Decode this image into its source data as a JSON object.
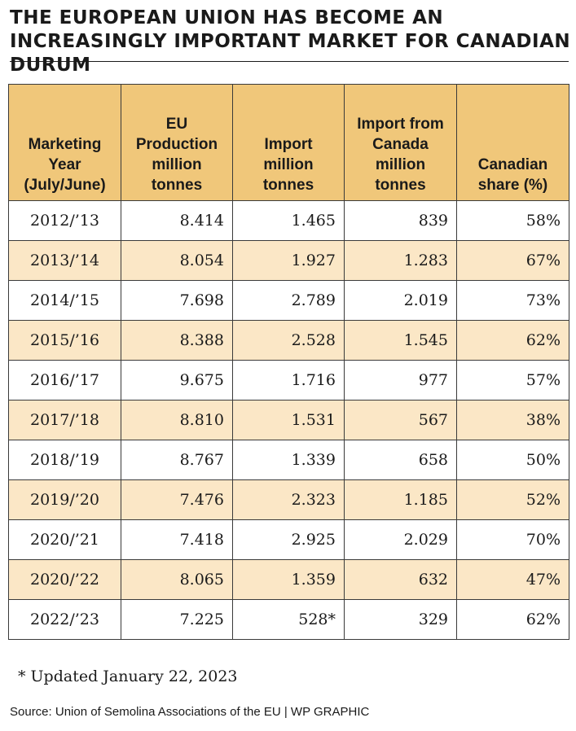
{
  "title": "THE EUROPEAN UNION HAS BECOME AN INCREASINGLY IMPORTANT MARKET FOR CANADIAN DURUM",
  "header_color": "#f0c77a",
  "alt_row_color": "#fbe7c6",
  "footnote": "* Updated January 22, 2023",
  "source": "Source: Union of Semolina Associations of the EU  |  WP GRAPHIC",
  "chart_data": {
    "type": "table",
    "title": "THE EUROPEAN UNION HAS BECOME AN INCREASINGLY IMPORTANT MARKET FOR CANADIAN DURUM",
    "columns": [
      "Marketing Year (July/June)",
      "EU Production million tonnes",
      "Import million tonnes",
      "Import from Canada million tonnes",
      "Canadian share (%)"
    ],
    "rows": [
      [
        "2012/’13",
        "8.414",
        "1.465",
        "839",
        "58%"
      ],
      [
        "2013/’14",
        "8.054",
        "1.927",
        "1.283",
        "67%"
      ],
      [
        "2014/’15",
        "7.698",
        "2.789",
        "2.019",
        "73%"
      ],
      [
        "2015/’16",
        "8.388",
        "2.528",
        "1.545",
        "62%"
      ],
      [
        "2016/’17",
        "9.675",
        "1.716",
        "977",
        "57%"
      ],
      [
        "2017/’18",
        "8.810",
        "1.531",
        "567",
        "38%"
      ],
      [
        "2018/’19",
        "8.767",
        "1.339",
        "658",
        "50%"
      ],
      [
        "2019/’20",
        "7.476",
        "2.323",
        "1.185",
        "52%"
      ],
      [
        "2020/’21",
        "7.418",
        "2.925",
        "2.029",
        "70%"
      ],
      [
        "2020/’22",
        "8.065",
        "1.359",
        "632",
        "47%"
      ],
      [
        "2022/’23",
        "7.225",
        "528*",
        "329",
        "62%"
      ]
    ]
  }
}
